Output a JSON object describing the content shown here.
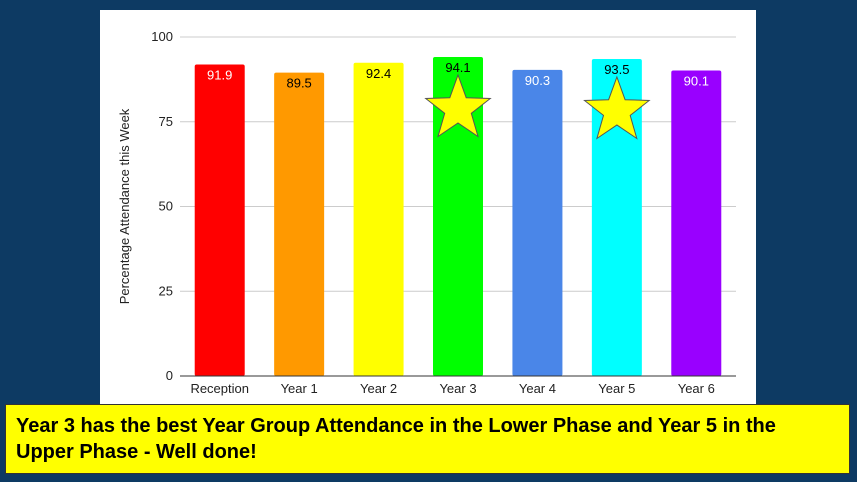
{
  "caption": "Year 3 has the best Year Group Attendance in the Lower Phase and Year 5 in the Upper Phase - Well done!",
  "chart_data": {
    "type": "bar",
    "title": "",
    "xlabel": "",
    "ylabel": "Percentage Attendance this Week",
    "ylim": [
      0,
      100
    ],
    "yticks": [
      0,
      25,
      50,
      75,
      100
    ],
    "grid": true,
    "legend": "none",
    "categories": [
      "Reception",
      "Year 1",
      "Year 2",
      "Year 3",
      "Year 4",
      "Year 5",
      "Year 6"
    ],
    "values": [
      91.9,
      89.5,
      92.4,
      94.1,
      90.3,
      93.5,
      90.1
    ],
    "value_labels": [
      "91.9",
      "89.5",
      "92.4",
      "94.1",
      "90.3",
      "93.5",
      "90.1"
    ],
    "colors": [
      "#ff0000",
      "#ff9900",
      "#ffff00",
      "#00ff00",
      "#4a86e8",
      "#00ffff",
      "#9900ff"
    ],
    "label_colors": [
      "#ffffff",
      "#000000",
      "#000000",
      "#000000",
      "#ffffff",
      "#000000",
      "#ffffff"
    ],
    "star_categories": [
      "Year 3",
      "Year 5"
    ],
    "star_color": "#ffff00",
    "star_icon": "star-icon"
  }
}
